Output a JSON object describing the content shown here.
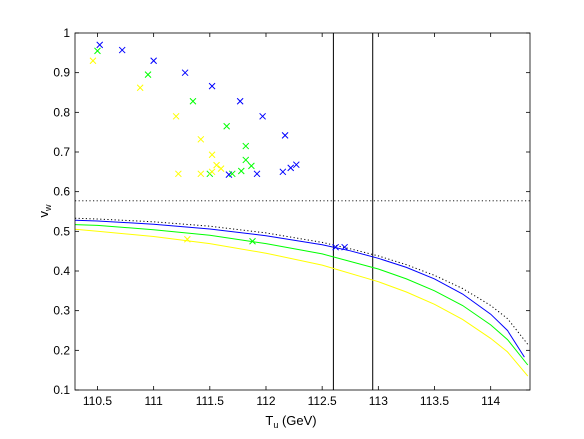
{
  "chart_data": {
    "type": "scatter",
    "title": "",
    "xlabel": "T",
    "xlabel_sub": "u",
    "xlabel_unit": " (GeV)",
    "ylabel": "v",
    "ylabel_sub": "w",
    "xlim": [
      110.3,
      114.35
    ],
    "ylim": [
      0.1,
      1.0
    ],
    "xticks": [
      110.5,
      111,
      111.5,
      112,
      112.5,
      113,
      113.5,
      114
    ],
    "xtick_labels": [
      "110.5",
      "111",
      "111.5",
      "112",
      "112.5",
      "113",
      "113.5",
      "114"
    ],
    "yticks": [
      0.1,
      0.2,
      0.3,
      0.4,
      0.5,
      0.6,
      0.7,
      0.8,
      0.9,
      1.0
    ],
    "ytick_labels": [
      "0.1",
      "0.2",
      "0.3",
      "0.4",
      "0.5",
      "0.6",
      "0.7",
      "0.8",
      "0.9",
      "1"
    ],
    "grid": false,
    "legend": "none",
    "colors": {
      "blue": "#0000ff",
      "green": "#00ff00",
      "yellow": "#ffff00",
      "black": "#000000"
    },
    "vertical_lines": [
      112.6,
      112.95
    ],
    "horizontal_dotted": 0.577,
    "series": [
      {
        "kind": "line",
        "style": "dotted",
        "color": "#000000",
        "x": [
          110.3,
          110.5,
          111.0,
          111.5,
          112.0,
          112.5,
          112.75,
          113.0,
          113.25,
          113.5,
          113.75,
          114.0,
          114.15,
          114.33
        ],
        "y": [
          0.533,
          0.531,
          0.524,
          0.513,
          0.496,
          0.472,
          0.456,
          0.438,
          0.416,
          0.389,
          0.356,
          0.313,
          0.28,
          0.215
        ]
      },
      {
        "kind": "line",
        "style": "solid",
        "color": "#0000ff",
        "x": [
          110.3,
          110.5,
          111.0,
          111.5,
          112.0,
          112.5,
          112.75,
          113.0,
          113.25,
          113.5,
          113.75,
          114.0,
          114.15,
          114.3
        ],
        "y": [
          0.528,
          0.526,
          0.518,
          0.506,
          0.489,
          0.466,
          0.451,
          0.432,
          0.409,
          0.38,
          0.342,
          0.291,
          0.25,
          0.183
        ]
      },
      {
        "kind": "line",
        "style": "solid",
        "color": "#00ff00",
        "x": [
          110.3,
          110.5,
          111.0,
          111.5,
          112.0,
          112.5,
          113.0,
          113.25,
          113.5,
          113.75,
          114.0,
          114.15,
          114.33
        ],
        "y": [
          0.517,
          0.515,
          0.504,
          0.49,
          0.469,
          0.443,
          0.405,
          0.38,
          0.35,
          0.313,
          0.264,
          0.227,
          0.163
        ]
      },
      {
        "kind": "line",
        "style": "solid",
        "color": "#ffff00",
        "x": [
          110.3,
          110.5,
          111.0,
          111.5,
          112.0,
          112.5,
          113.0,
          113.25,
          113.5,
          113.75,
          114.0,
          114.15,
          114.33
        ],
        "y": [
          0.505,
          0.5,
          0.487,
          0.469,
          0.445,
          0.415,
          0.373,
          0.347,
          0.316,
          0.278,
          0.23,
          0.196,
          0.135
        ]
      },
      {
        "kind": "markers",
        "color": "#0000ff",
        "x": [
          110.52,
          110.72,
          111.0,
          111.28,
          111.52,
          111.77,
          111.97,
          112.17,
          112.22,
          112.27,
          112.15,
          111.92,
          111.67,
          112.62,
          112.7
        ],
        "y": [
          0.97,
          0.957,
          0.93,
          0.9,
          0.866,
          0.828,
          0.79,
          0.742,
          0.66,
          0.668,
          0.65,
          0.645,
          0.643,
          0.46,
          0.46
        ]
      },
      {
        "kind": "markers",
        "color": "#00ff00",
        "x": [
          110.5,
          110.95,
          111.35,
          111.65,
          111.82,
          111.82,
          111.87,
          111.78,
          111.7,
          111.5,
          111.88
        ],
        "y": [
          0.955,
          0.895,
          0.828,
          0.765,
          0.715,
          0.68,
          0.665,
          0.652,
          0.645,
          0.645,
          0.475
        ]
      },
      {
        "kind": "markers",
        "color": "#ffff00",
        "x": [
          110.46,
          110.88,
          111.2,
          111.42,
          111.52,
          111.56,
          111.6,
          111.52,
          111.42,
          111.22,
          111.3
        ],
        "y": [
          0.93,
          0.862,
          0.79,
          0.732,
          0.693,
          0.667,
          0.658,
          0.65,
          0.645,
          0.645,
          0.48
        ]
      }
    ]
  }
}
